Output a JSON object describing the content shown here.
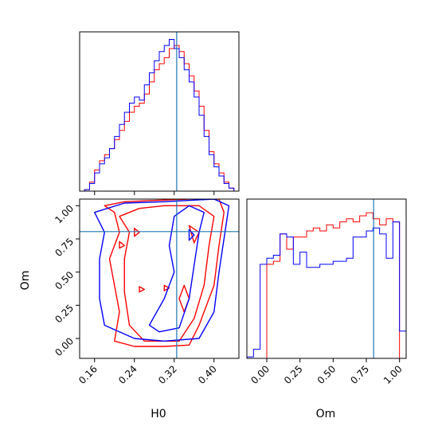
{
  "chart_data": {
    "type": "corner",
    "parameters": [
      "H0",
      "Om"
    ],
    "truths": {
      "H0": 0.325,
      "Om": 0.805
    },
    "colors": {
      "samples_a": "#ff0000",
      "samples_b": "#0000ff",
      "truth": "#1f77b4"
    },
    "series_colors_note_hidden": null,
    "hist_H0": {
      "xlim": [
        0.13,
        0.45
      ],
      "xticks": [
        "0.16",
        "0.24",
        "0.32",
        "0.40"
      ],
      "xtick_values": [
        0.16,
        0.24,
        0.32,
        0.4
      ],
      "bin_edges": [
        0.13,
        0.14,
        0.15,
        0.16,
        0.17,
        0.18,
        0.19,
        0.2,
        0.21,
        0.22,
        0.23,
        0.24,
        0.25,
        0.26,
        0.27,
        0.28,
        0.29,
        0.3,
        0.31,
        0.32,
        0.33,
        0.34,
        0.35,
        0.36,
        0.37,
        0.38,
        0.39,
        0.4,
        0.41,
        0.42,
        0.43,
        0.44,
        0.45
      ],
      "red": [
        0,
        0.01,
        0.06,
        0.14,
        0.2,
        0.24,
        0.28,
        0.34,
        0.4,
        0.46,
        0.52,
        0.56,
        0.58,
        0.64,
        0.72,
        0.8,
        0.84,
        0.88,
        0.94,
        0.96,
        0.92,
        0.84,
        0.76,
        0.66,
        0.56,
        0.4,
        0.26,
        0.18,
        0.12,
        0.06,
        0.02,
        0
      ],
      "blue": [
        0,
        0.01,
        0.05,
        0.12,
        0.18,
        0.22,
        0.28,
        0.36,
        0.44,
        0.52,
        0.58,
        0.62,
        0.6,
        0.7,
        0.78,
        0.86,
        0.92,
        0.96,
        1.0,
        0.94,
        0.88,
        0.8,
        0.72,
        0.62,
        0.5,
        0.36,
        0.24,
        0.16,
        0.1,
        0.05,
        0.02,
        0
      ]
    },
    "hist_Om": {
      "xlim": [
        -0.15,
        1.05
      ],
      "xticks": [
        "0.00",
        "0.25",
        "0.50",
        "0.75",
        "1.00"
      ],
      "xtick_values": [
        0.0,
        0.25,
        0.5,
        0.75,
        1.0
      ],
      "bin_edges": [
        -0.15,
        -0.1,
        -0.05,
        0.0,
        0.05,
        0.1,
        0.15,
        0.2,
        0.25,
        0.3,
        0.35,
        0.4,
        0.45,
        0.5,
        0.55,
        0.6,
        0.65,
        0.7,
        0.75,
        0.8,
        0.85,
        0.9,
        0.95,
        1.0,
        1.05
      ],
      "red": [
        0,
        0,
        0,
        0.62,
        0.64,
        0.82,
        0.72,
        0.8,
        0.8,
        0.84,
        0.86,
        0.84,
        0.88,
        0.86,
        0.9,
        0.92,
        0.9,
        0.94,
        0.96,
        0.92,
        0.88,
        0.92,
        0.9,
        0
      ],
      "blue": [
        0.01,
        0.06,
        0.62,
        0.66,
        0.68,
        0.82,
        0.8,
        0.62,
        0.7,
        0.6,
        0.6,
        0.62,
        0.62,
        0.64,
        0.64,
        0.66,
        0.8,
        0.8,
        0.84,
        0.86,
        0.82,
        0.66,
        0.9,
        0.18
      ]
    },
    "scatter_panel": {
      "xlabel": "H0",
      "ylabel": "Om",
      "xlim": [
        0.13,
        0.45
      ],
      "ylim": [
        -0.15,
        1.05
      ],
      "xticks": [
        "0.16",
        "0.24",
        "0.32",
        "0.40"
      ],
      "xtick_values": [
        0.16,
        0.24,
        0.32,
        0.4
      ],
      "yticks": [
        "0.00",
        "0.25",
        "0.50",
        "0.75",
        "1.00"
      ],
      "ytick_values": [
        0.0,
        0.25,
        0.5,
        0.75,
        1.0
      ],
      "red_contours": [
        [
          [
            0.18,
            1.0
          ],
          [
            0.2,
            0.95
          ],
          [
            0.21,
            0.8
          ],
          [
            0.19,
            0.6
          ],
          [
            0.2,
            0.4
          ],
          [
            0.21,
            0.2
          ],
          [
            0.2,
            -0.02
          ],
          [
            0.24,
            -0.06
          ],
          [
            0.3,
            -0.06
          ],
          [
            0.35,
            -0.05
          ],
          [
            0.37,
            0.1
          ],
          [
            0.4,
            0.4
          ],
          [
            0.41,
            0.7
          ],
          [
            0.42,
            0.95
          ],
          [
            0.41,
            1.05
          ],
          [
            0.35,
            1.05
          ],
          [
            0.28,
            1.04
          ],
          [
            0.22,
            1.03
          ],
          [
            0.18,
            1.0
          ]
        ],
        [
          [
            0.21,
            0.92
          ],
          [
            0.23,
            0.8
          ],
          [
            0.22,
            0.6
          ],
          [
            0.22,
            0.35
          ],
          [
            0.23,
            0.1
          ],
          [
            0.26,
            -0.02
          ],
          [
            0.33,
            -0.02
          ],
          [
            0.36,
            0.15
          ],
          [
            0.38,
            0.4
          ],
          [
            0.39,
            0.7
          ],
          [
            0.4,
            0.92
          ],
          [
            0.37,
            1.0
          ],
          [
            0.3,
            1.0
          ],
          [
            0.25,
            0.98
          ],
          [
            0.21,
            0.92
          ]
        ],
        [
          [
            0.33,
            0.3
          ],
          [
            0.34,
            0.2
          ],
          [
            0.35,
            0.3
          ],
          [
            0.34,
            0.4
          ],
          [
            0.33,
            0.3
          ]
        ],
        [
          [
            0.24,
            0.83
          ],
          [
            0.25,
            0.8
          ],
          [
            0.24,
            0.77
          ],
          [
            0.24,
            0.83
          ]
        ],
        [
          [
            0.21,
            0.73
          ],
          [
            0.22,
            0.7
          ],
          [
            0.21,
            0.68
          ],
          [
            0.21,
            0.73
          ]
        ],
        [
          [
            0.25,
            0.39
          ],
          [
            0.26,
            0.37
          ],
          [
            0.25,
            0.35
          ],
          [
            0.25,
            0.39
          ]
        ],
        [
          [
            0.3,
            0.4
          ],
          [
            0.31,
            0.38
          ],
          [
            0.3,
            0.36
          ],
          [
            0.3,
            0.4
          ]
        ],
        [
          [
            0.35,
            0.85
          ],
          [
            0.37,
            0.8
          ],
          [
            0.36,
            0.72
          ],
          [
            0.35,
            0.85
          ]
        ]
      ],
      "blue_contours": [
        [
          [
            0.16,
            0.95
          ],
          [
            0.18,
            0.8
          ],
          [
            0.17,
            0.6
          ],
          [
            0.17,
            0.3
          ],
          [
            0.18,
            0.1
          ],
          [
            0.24,
            0.0
          ],
          [
            0.3,
            -0.02
          ],
          [
            0.37,
            0.0
          ],
          [
            0.4,
            0.2
          ],
          [
            0.41,
            0.5
          ],
          [
            0.42,
            0.75
          ],
          [
            0.43,
            1.0
          ],
          [
            0.4,
            1.05
          ],
          [
            0.3,
            1.03
          ],
          [
            0.22,
            1.02
          ],
          [
            0.16,
            0.95
          ]
        ],
        [
          [
            0.27,
            0.1
          ],
          [
            0.29,
            0.05
          ],
          [
            0.33,
            0.08
          ],
          [
            0.35,
            0.3
          ],
          [
            0.36,
            0.55
          ],
          [
            0.37,
            0.8
          ],
          [
            0.38,
            0.95
          ],
          [
            0.35,
            1.0
          ],
          [
            0.32,
            0.92
          ],
          [
            0.31,
            0.7
          ],
          [
            0.32,
            0.5
          ],
          [
            0.3,
            0.3
          ],
          [
            0.27,
            0.1
          ]
        ],
        [
          [
            0.35,
            0.82
          ],
          [
            0.36,
            0.78
          ],
          [
            0.35,
            0.74
          ],
          [
            0.35,
            0.82
          ]
        ]
      ]
    }
  }
}
